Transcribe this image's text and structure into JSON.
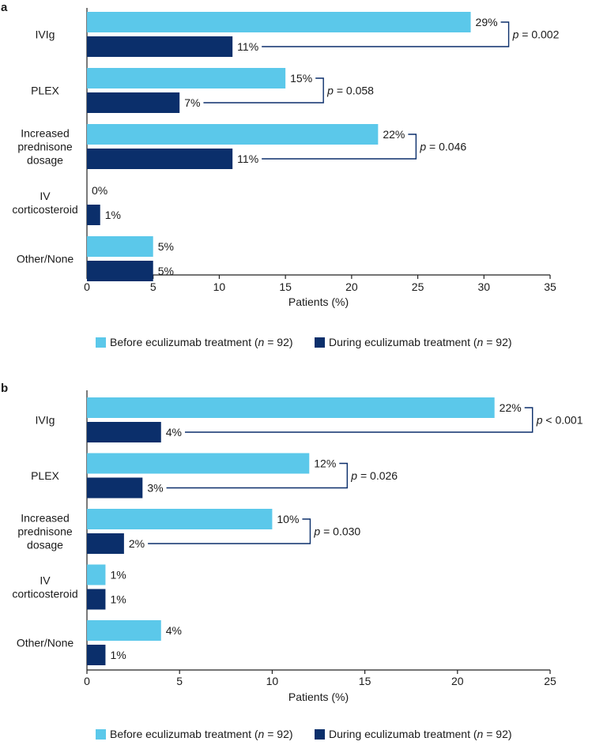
{
  "colors": {
    "before": "#5bc8ea",
    "during": "#0b2f6b",
    "axis": "#222222",
    "bracket": "#0b2f6b"
  },
  "chart_data": [
    {
      "panel": "a",
      "type": "bar",
      "orientation": "horizontal",
      "categories": [
        [
          "IVIg"
        ],
        [
          "PLEX"
        ],
        [
          "Increased",
          "prednisone",
          "dosage"
        ],
        [
          "IV",
          "corticosteroid"
        ],
        [
          "Other/None"
        ]
      ],
      "series": [
        {
          "name": "Before eculizumab treatment (n = 92)",
          "values": [
            29,
            15,
            22,
            0,
            5
          ],
          "labels": [
            "29%",
            "15%",
            "22%",
            "0%",
            "5%"
          ]
        },
        {
          "name": "During eculizumab treatment (n = 92)",
          "values": [
            11,
            7,
            11,
            1,
            5
          ],
          "labels": [
            "11%",
            "7%",
            "11%",
            "1%",
            "5%"
          ]
        }
      ],
      "pvalues": [
        "p = 0.002",
        "p = 0.058",
        "p = 0.046",
        "",
        ""
      ],
      "xlabel": "Patients (%)",
      "xlim": [
        0,
        35
      ],
      "xticks": [
        0,
        5,
        10,
        15,
        20,
        25,
        30,
        35
      ],
      "legend": {
        "placement": "bottom",
        "items": [
          "Before eculizumab treatment (n = 92)",
          "During eculizumab treatment (n = 92)"
        ]
      }
    },
    {
      "panel": "b",
      "type": "bar",
      "orientation": "horizontal",
      "categories": [
        [
          "IVIg"
        ],
        [
          "PLEX"
        ],
        [
          "Increased",
          "prednisone",
          "dosage"
        ],
        [
          "IV",
          "corticosteroid"
        ],
        [
          "Other/None"
        ]
      ],
      "series": [
        {
          "name": "Before eculizumab treatment (n = 92)",
          "values": [
            22,
            12,
            10,
            1,
            4
          ],
          "labels": [
            "22%",
            "12%",
            "10%",
            "1%",
            "4%"
          ]
        },
        {
          "name": "During eculizumab treatment (n = 92)",
          "values": [
            4,
            3,
            2,
            1,
            1
          ],
          "labels": [
            "4%",
            "3%",
            "2%",
            "1%",
            "1%"
          ]
        }
      ],
      "pvalues": [
        "p < 0.001",
        "p = 0.026",
        "p = 0.030",
        "",
        ""
      ],
      "xlabel": "Patients (%)",
      "xlim": [
        0,
        25
      ],
      "xticks": [
        0,
        5,
        10,
        15,
        20,
        25
      ],
      "legend": {
        "placement": "bottom",
        "items": [
          "Before eculizumab treatment (n = 92)",
          "During eculizumab treatment (n = 92)"
        ]
      }
    }
  ]
}
